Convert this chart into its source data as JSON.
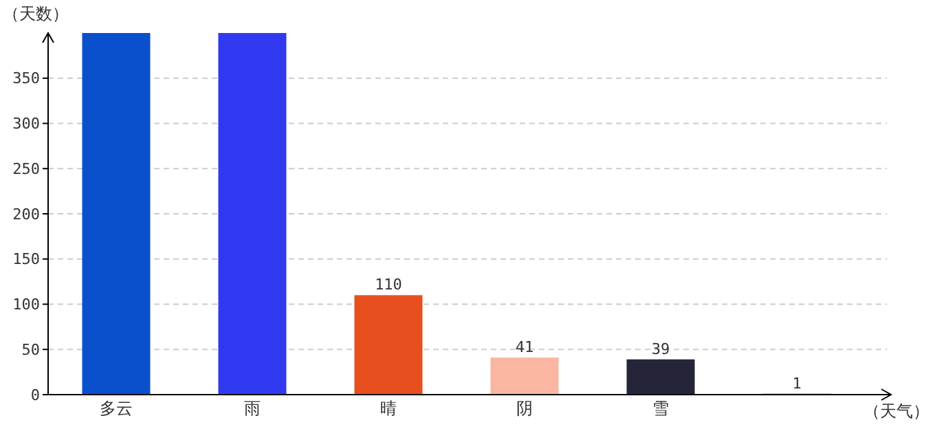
{
  "chart_data": {
    "type": "bar",
    "xlabel": "（天气）",
    "ylabel": "（天数）",
    "categories": [
      "多云",
      "雨",
      "晴",
      "阴",
      "雪",
      null
    ],
    "values": [
      400,
      400,
      110,
      41,
      39,
      1
    ],
    "colors": [
      "#0a4fcc",
      "#3139f0",
      "#e84f1e",
      "#fbb6a2",
      "#25253a",
      "#2a8a2a"
    ],
    "value_labels": [
      null,
      null,
      "110",
      "41",
      "39",
      "1"
    ],
    "ylim": [
      0,
      400
    ],
    "yticks": [
      0,
      50,
      100,
      150,
      200,
      250,
      300,
      350
    ],
    "grid": "y"
  }
}
